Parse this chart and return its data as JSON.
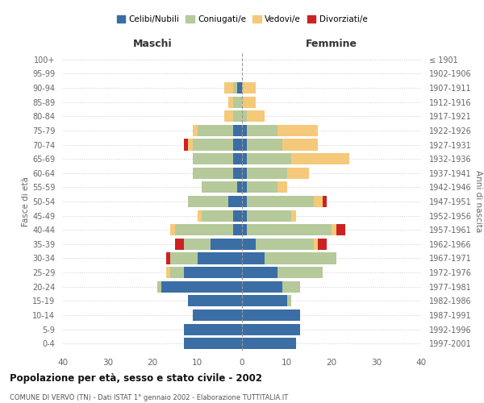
{
  "age_groups": [
    "0-4",
    "5-9",
    "10-14",
    "15-19",
    "20-24",
    "25-29",
    "30-34",
    "35-39",
    "40-44",
    "45-49",
    "50-54",
    "55-59",
    "60-64",
    "65-69",
    "70-74",
    "75-79",
    "80-84",
    "85-89",
    "90-94",
    "95-99",
    "100+"
  ],
  "birth_years": [
    "1997-2001",
    "1992-1996",
    "1987-1991",
    "1982-1986",
    "1977-1981",
    "1972-1976",
    "1967-1971",
    "1962-1966",
    "1957-1961",
    "1952-1956",
    "1947-1951",
    "1942-1946",
    "1937-1941",
    "1932-1936",
    "1927-1931",
    "1922-1926",
    "1917-1921",
    "1912-1916",
    "1907-1911",
    "1902-1906",
    "≤ 1901"
  ],
  "colors": {
    "celibe": "#3a6ea5",
    "coniugato": "#b5c99a",
    "vedovo": "#f5c97a",
    "divorziato": "#cc2222"
  },
  "maschi": {
    "celibe": [
      13,
      13,
      11,
      12,
      18,
      13,
      10,
      7,
      2,
      2,
      3,
      1,
      2,
      2,
      2,
      2,
      0,
      0,
      1,
      0,
      0
    ],
    "coniugato": [
      0,
      0,
      0,
      0,
      1,
      3,
      6,
      6,
      13,
      7,
      9,
      8,
      9,
      9,
      9,
      8,
      2,
      2,
      1,
      0,
      0
    ],
    "vedovo": [
      0,
      0,
      0,
      0,
      0,
      1,
      0,
      0,
      1,
      1,
      0,
      0,
      0,
      0,
      1,
      1,
      2,
      1,
      2,
      0,
      0
    ],
    "divorziato": [
      0,
      0,
      0,
      0,
      0,
      0,
      1,
      2,
      0,
      0,
      0,
      0,
      0,
      0,
      1,
      0,
      0,
      0,
      0,
      0,
      0
    ]
  },
  "femmine": {
    "nubile": [
      12,
      13,
      13,
      10,
      9,
      8,
      5,
      3,
      1,
      1,
      1,
      1,
      1,
      1,
      1,
      1,
      0,
      0,
      0,
      0,
      0
    ],
    "coniugata": [
      0,
      0,
      0,
      1,
      4,
      10,
      16,
      13,
      19,
      10,
      15,
      7,
      9,
      10,
      8,
      7,
      1,
      0,
      0,
      0,
      0
    ],
    "vedova": [
      0,
      0,
      0,
      0,
      0,
      0,
      0,
      1,
      1,
      1,
      2,
      2,
      5,
      13,
      8,
      9,
      4,
      3,
      3,
      0,
      0
    ],
    "divorziata": [
      0,
      0,
      0,
      0,
      0,
      0,
      0,
      2,
      2,
      0,
      1,
      0,
      0,
      0,
      0,
      0,
      0,
      0,
      0,
      0,
      0
    ]
  },
  "xlim": 40,
  "title": "Popolazione per età, sesso e stato civile - 2002",
  "subtitle": "COMUNE DI VERVÒ (TN) - Dati ISTAT 1° gennaio 2002 - Elaborazione TUTTITALIA.IT",
  "ylabel_left": "Fasce di età",
  "ylabel_right": "Anni di nascita",
  "xlabel_left": "Maschi",
  "xlabel_right": "Femmine",
  "bg_color": "#ffffff",
  "grid_color": "#cccccc",
  "legend_labels": [
    "Celibi/Nubili",
    "Coniugati/e",
    "Vedovi/e",
    "Divorziati/e"
  ]
}
